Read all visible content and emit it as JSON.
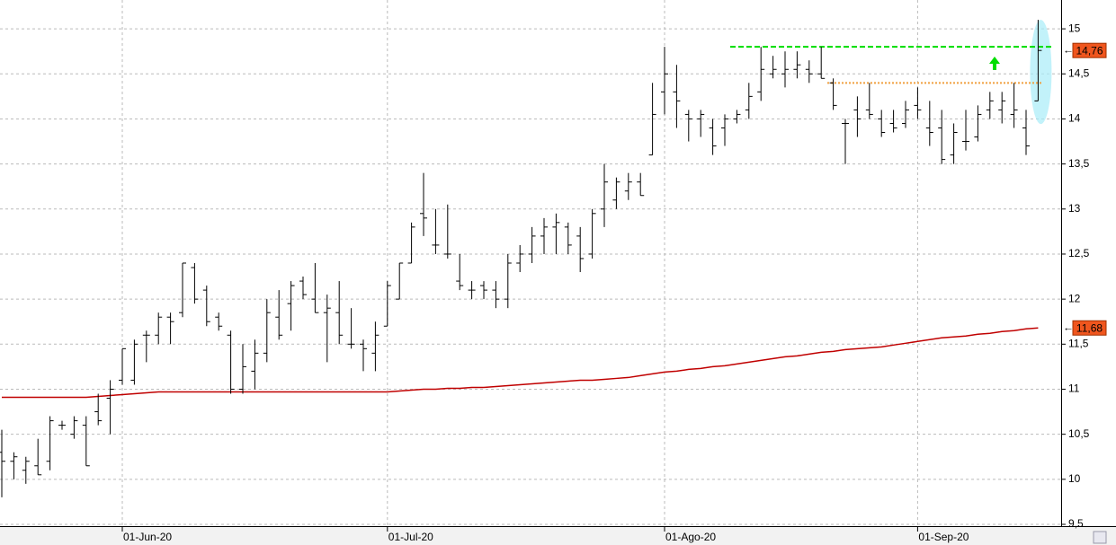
{
  "chart_data": {
    "type": "ohlc",
    "categories": [
      null,
      null,
      null,
      null,
      null,
      null,
      null,
      null,
      null,
      null,
      "01-Jun-20",
      null,
      null,
      null,
      null,
      null,
      null,
      null,
      null,
      null,
      null,
      null,
      null,
      null,
      null,
      null,
      null,
      null,
      null,
      null,
      null,
      null,
      "01-Jul-20",
      null,
      null,
      null,
      null,
      null,
      null,
      null,
      null,
      null,
      null,
      null,
      null,
      null,
      null,
      null,
      null,
      null,
      null,
      null,
      null,
      null,
      null,
      "01-Ago-20",
      null,
      null,
      null,
      null,
      null,
      null,
      null,
      null,
      null,
      null,
      null,
      null,
      null,
      null,
      null,
      null,
      null,
      null,
      null,
      null,
      "01-Sep-20",
      null,
      null,
      null,
      null,
      null,
      null,
      null,
      null,
      null,
      null
    ],
    "open": [
      10.3,
      10.2,
      10.1,
      10.15,
      10.2,
      10.6,
      10.5,
      10.6,
      10.75,
      10.9,
      11.1,
      11.1,
      11.6,
      11.6,
      11.8,
      11.85,
      12.35,
      12.1,
      11.8,
      11.6,
      11.0,
      11.2,
      11.4,
      11.8,
      11.95,
      12.2,
      12.0,
      11.85,
      11.85,
      11.5,
      11.5,
      11.4,
      11.7,
      12.0,
      12.4,
      12.95,
      12.6,
      12.5,
      12.2,
      12.1,
      12.15,
      12.1,
      12.0,
      12.4,
      12.5,
      12.7,
      12.8,
      12.8,
      12.7,
      12.5,
      13.0,
      13.1,
      13.2,
      13.3,
      13.6,
      14.3,
      14.3,
      14.05,
      14.0,
      13.9,
      13.9,
      14.0,
      14.1,
      14.3,
      14.5,
      14.5,
      14.55,
      14.55,
      14.5,
      14.4,
      13.95,
      14.1,
      14.1,
      14.0,
      13.95,
      13.95,
      14.15,
      13.9,
      13.9,
      13.6,
      13.75,
      13.8,
      14.1,
      14.1,
      14.05,
      13.9,
      14.2
    ],
    "high": [
      10.55,
      10.3,
      10.25,
      10.45,
      10.7,
      10.65,
      10.7,
      10.7,
      10.95,
      11.1,
      11.45,
      11.55,
      11.65,
      11.85,
      11.85,
      12.4,
      12.4,
      12.15,
      11.85,
      11.65,
      11.5,
      11.55,
      12.0,
      12.1,
      12.2,
      12.25,
      12.4,
      12.05,
      12.2,
      11.9,
      11.55,
      11.75,
      12.2,
      12.4,
      12.85,
      13.4,
      13.0,
      13.05,
      12.5,
      12.2,
      12.2,
      12.2,
      12.5,
      12.6,
      12.8,
      12.9,
      12.95,
      12.85,
      12.8,
      13.0,
      13.5,
      13.35,
      13.4,
      13.4,
      14.4,
      14.8,
      14.6,
      14.1,
      14.1,
      14.0,
      14.05,
      14.1,
      14.4,
      14.8,
      14.7,
      14.75,
      14.75,
      14.65,
      14.8,
      14.45,
      14.0,
      14.25,
      14.4,
      14.1,
      14.1,
      14.2,
      14.35,
      14.2,
      14.1,
      13.95,
      14.1,
      14.15,
      14.3,
      14.3,
      14.4,
      14.1,
      15.1
    ],
    "low": [
      9.8,
      10.0,
      9.95,
      10.05,
      10.1,
      10.55,
      10.45,
      10.15,
      10.6,
      10.5,
      11.05,
      11.05,
      11.3,
      11.5,
      11.5,
      11.8,
      11.95,
      11.7,
      11.65,
      10.95,
      10.95,
      11.0,
      11.3,
      11.55,
      11.65,
      12.0,
      11.85,
      11.3,
      11.5,
      11.45,
      11.2,
      11.2,
      11.7,
      12.0,
      12.4,
      12.7,
      12.5,
      12.45,
      12.1,
      12.0,
      12.0,
      11.9,
      11.9,
      12.3,
      12.4,
      12.5,
      12.5,
      12.5,
      12.3,
      12.45,
      12.8,
      13.0,
      13.1,
      13.15,
      13.6,
      14.05,
      13.9,
      13.75,
      13.8,
      13.6,
      13.7,
      13.95,
      14.0,
      14.2,
      14.45,
      14.35,
      14.45,
      14.4,
      14.45,
      14.1,
      13.5,
      13.8,
      14.0,
      13.8,
      13.85,
      13.9,
      14.0,
      13.7,
      13.5,
      13.5,
      13.65,
      13.75,
      14.0,
      13.95,
      13.9,
      13.6,
      14.2
    ],
    "close": [
      10.2,
      10.25,
      10.2,
      10.05,
      10.65,
      10.6,
      10.65,
      10.15,
      10.65,
      11.0,
      11.45,
      11.5,
      11.6,
      11.8,
      11.75,
      12.4,
      12.0,
      11.75,
      11.7,
      11.0,
      11.25,
      11.4,
      11.85,
      11.6,
      12.15,
      12.05,
      11.85,
      11.9,
      11.6,
      11.5,
      11.45,
      11.6,
      12.15,
      12.4,
      12.8,
      12.9,
      12.6,
      12.5,
      12.15,
      12.1,
      12.1,
      12.0,
      12.4,
      12.5,
      12.7,
      12.8,
      12.85,
      12.6,
      12.45,
      12.95,
      13.3,
      13.3,
      13.3,
      13.15,
      14.05,
      14.5,
      14.2,
      14.0,
      14.05,
      13.7,
      14.0,
      14.05,
      14.25,
      14.55,
      14.55,
      14.55,
      14.6,
      14.5,
      14.45,
      14.15,
      13.95,
      14.0,
      14.05,
      13.85,
      13.9,
      14.1,
      14.1,
      13.85,
      13.55,
      13.85,
      13.75,
      14.05,
      14.2,
      14.2,
      14.1,
      13.7,
      14.76
    ],
    "color": "#000000",
    "last_close_label": "14,76",
    "label_box_color": "#f0561e",
    "moving_average": {
      "color": "#c00000",
      "values": [
        10.91,
        10.91,
        10.91,
        10.91,
        10.91,
        10.91,
        10.91,
        10.91,
        10.92,
        10.93,
        10.94,
        10.95,
        10.96,
        10.97,
        10.97,
        10.97,
        10.97,
        10.97,
        10.97,
        10.97,
        10.97,
        10.97,
        10.97,
        10.97,
        10.97,
        10.97,
        10.97,
        10.97,
        10.97,
        10.97,
        10.97,
        10.97,
        10.97,
        10.98,
        10.99,
        11.0,
        11.0,
        11.01,
        11.01,
        11.02,
        11.02,
        11.03,
        11.04,
        11.05,
        11.06,
        11.07,
        11.08,
        11.09,
        11.1,
        11.1,
        11.11,
        11.12,
        11.13,
        11.15,
        11.17,
        11.19,
        11.2,
        11.22,
        11.23,
        11.25,
        11.26,
        11.28,
        11.3,
        11.32,
        11.34,
        11.36,
        11.37,
        11.39,
        11.41,
        11.42,
        11.44,
        11.45,
        11.46,
        11.47,
        11.49,
        11.51,
        11.53,
        11.55,
        11.57,
        11.58,
        11.59,
        11.61,
        11.62,
        11.64,
        11.65,
        11.67,
        11.68
      ],
      "last_value_label": "11,68"
    },
    "levels": [
      {
        "value": 14.8,
        "color": "#00dd00",
        "style": "dashed"
      },
      {
        "value": 14.4,
        "color": "#f0a040",
        "style": "dotted"
      }
    ],
    "ylim": [
      9.48,
      15.32
    ],
    "yticks": [
      {
        "value": 9.5,
        "label": "9,5"
      },
      10,
      {
        "value": 10.5,
        "label": "10,5"
      },
      11,
      {
        "value": 11.5,
        "label": "11,5"
      },
      12,
      {
        "value": 12.5,
        "label": "12,5"
      },
      13,
      {
        "value": 13.5,
        "label": "13,5"
      },
      14,
      {
        "value": 14.5,
        "label": "14,5"
      },
      15
    ],
    "grid": true
  }
}
